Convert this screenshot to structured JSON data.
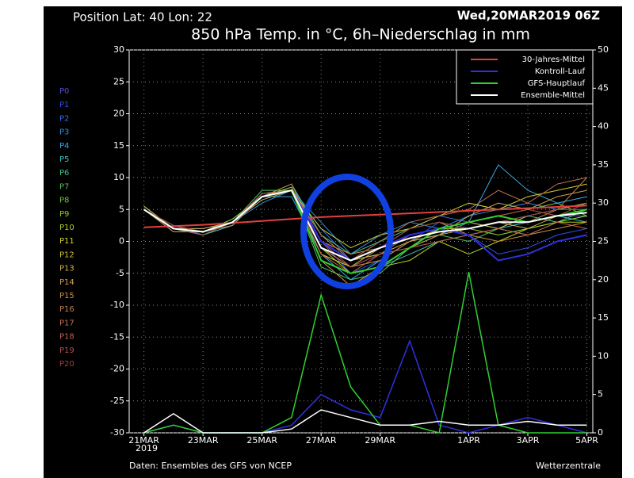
{
  "chart_data": {
    "type": "line",
    "position": "Position   Lat: 40 Lon: 22",
    "run": "Wed,20MAR2019 06Z",
    "title": "850 hPa Temp. in °C, 6h–Niederschlag in mm",
    "source": "Daten: Ensembles des GFS von NCEP",
    "brand": "Wetterzentrale",
    "x_year": "2019",
    "x": [
      21,
      22,
      23,
      24,
      25,
      26,
      27,
      28,
      29,
      30,
      31,
      32,
      33,
      34,
      35,
      36
    ],
    "xlim": [
      20.5,
      36.2
    ],
    "xticks": [
      {
        "value": 21,
        "label": "21MAR"
      },
      {
        "value": 23,
        "label": "23MAR"
      },
      {
        "value": 25,
        "label": "25MAR"
      },
      {
        "value": 27,
        "label": "27MAR"
      },
      {
        "value": 29,
        "label": "29MAR"
      },
      {
        "value": 32,
        "label": "1APR"
      },
      {
        "value": 34,
        "label": "3APR"
      },
      {
        "value": 36,
        "label": "5APR"
      }
    ],
    "ylim": [
      -30,
      30
    ],
    "yticks": [
      -30,
      -25,
      -20,
      -15,
      -10,
      -5,
      0,
      5,
      10,
      15,
      20,
      25,
      30
    ],
    "y2lim": [
      0,
      50
    ],
    "y2ticks": [
      0,
      5,
      10,
      15,
      20,
      25,
      30,
      35,
      40,
      45,
      50
    ],
    "grid": true,
    "legend": "top-right",
    "series": [
      {
        "name": "30-Jahres-Mittel",
        "color": "#e04040",
        "values": [
          2.2,
          2.4,
          2.6,
          2.9,
          3.2,
          3.5,
          3.8,
          4.0,
          4.2,
          4.4,
          4.6,
          4.8,
          5.0,
          5.2,
          5.4,
          5.6
        ]
      },
      {
        "name": "Kontroll-Lauf",
        "color": "#3030e0",
        "values": [
          5,
          2,
          1.5,
          3,
          7,
          8,
          0,
          -3,
          -1,
          1,
          2,
          1,
          -3,
          -2,
          0,
          1
        ],
        "axis_y2_precip": [
          0,
          1,
          0,
          0,
          0,
          1,
          5,
          3,
          2,
          12,
          1,
          0,
          1,
          2,
          1,
          0
        ]
      },
      {
        "name": "GFS-Hauptlauf",
        "color": "#30d030",
        "values": [
          5,
          2,
          1.5,
          3,
          7,
          8,
          -3,
          -5,
          -4,
          -1,
          2,
          3,
          4,
          3,
          4,
          5
        ],
        "axis_y2_precip": [
          0,
          1,
          0,
          0,
          0,
          2,
          18,
          6,
          1,
          1,
          0,
          21,
          1,
          0,
          0,
          0
        ]
      },
      {
        "name": "Ensemble-Mittel",
        "color": "#ffffff",
        "values": [
          5,
          2,
          1.5,
          3,
          7,
          8,
          -1,
          -3,
          -1,
          0.5,
          1.5,
          2,
          3,
          3,
          4,
          4.5
        ],
        "axis_y2_precip": [
          0,
          2.5,
          0,
          0,
          0,
          0.5,
          3,
          2,
          1,
          1,
          1.5,
          1,
          1,
          1.5,
          1,
          1
        ]
      }
    ],
    "members": [
      {
        "name": "P0",
        "color": "#5050d0",
        "values": [
          5,
          2,
          1.5,
          3,
          7,
          8,
          -1,
          -4,
          -2,
          1,
          2,
          2,
          3,
          3,
          4,
          4
        ]
      },
      {
        "name": "P1",
        "color": "#3050e0",
        "values": [
          5,
          2.5,
          1,
          3,
          7,
          9,
          0,
          -5,
          -3,
          0,
          3,
          1,
          -2,
          -1,
          1,
          2
        ]
      },
      {
        "name": "P2",
        "color": "#3070e0",
        "values": [
          5,
          2,
          1.5,
          3.5,
          7,
          8,
          2,
          -3,
          -1,
          2,
          4,
          3,
          2,
          4,
          5,
          6
        ]
      },
      {
        "name": "P3",
        "color": "#3090e0",
        "values": [
          5.5,
          2,
          2,
          3,
          6,
          8,
          3,
          -2,
          1,
          3,
          2,
          4,
          5,
          6,
          5,
          5
        ]
      },
      {
        "name": "P4",
        "color": "#40a8e0",
        "values": [
          5,
          1.5,
          1.5,
          3,
          7,
          7,
          -2,
          -6,
          -3,
          0,
          1,
          3,
          12,
          8,
          6,
          7
        ]
      },
      {
        "name": "P5",
        "color": "#40c0c0",
        "values": [
          5,
          2,
          1,
          2.5,
          7.5,
          8,
          -3,
          -5,
          -4,
          -2,
          0,
          1,
          2,
          3,
          4,
          3
        ]
      },
      {
        "name": "P6",
        "color": "#40c090",
        "values": [
          5,
          2,
          1.5,
          3,
          7,
          9,
          1,
          -2,
          0,
          2,
          3,
          2,
          3,
          4,
          3,
          5
        ]
      },
      {
        "name": "P7",
        "color": "#50c060",
        "values": [
          5,
          2,
          2,
          3,
          8,
          8,
          -4,
          -6,
          -5,
          -1,
          1,
          0,
          2,
          1,
          3,
          4
        ]
      },
      {
        "name": "P8",
        "color": "#70c040",
        "values": [
          5,
          2.5,
          1.5,
          3,
          7,
          8,
          -2,
          -4,
          -3,
          0,
          2,
          3,
          4,
          5,
          6,
          4
        ]
      },
      {
        "name": "P9",
        "color": "#90d030",
        "values": [
          5,
          2,
          1.5,
          3.5,
          7,
          8,
          0,
          -3,
          -2,
          1,
          2,
          2,
          1,
          2,
          3,
          4
        ]
      },
      {
        "name": "P10",
        "color": "#b0d020",
        "values": [
          5,
          2,
          1,
          3,
          7,
          8.5,
          -1,
          -5,
          -4,
          -3,
          0,
          -2,
          0,
          2,
          3,
          3
        ]
      },
      {
        "name": "P11",
        "color": "#d0d030",
        "values": [
          5,
          2,
          1.5,
          3,
          7,
          8,
          2,
          -1,
          1,
          2,
          4,
          6,
          5,
          7,
          8,
          9
        ]
      },
      {
        "name": "P12",
        "color": "#d0c040",
        "values": [
          5.5,
          2,
          1.5,
          3,
          7,
          8,
          -2,
          -4,
          -1,
          1,
          2,
          3,
          2,
          4,
          5,
          6
        ]
      },
      {
        "name": "P13",
        "color": "#d0b050",
        "values": [
          5,
          2,
          1.5,
          3,
          6.5,
          8,
          1,
          -3,
          -2,
          0,
          1,
          2,
          3,
          2,
          4,
          5
        ]
      },
      {
        "name": "P14",
        "color": "#d0a050",
        "values": [
          5,
          2,
          2,
          3,
          7,
          8,
          -3,
          -7,
          -4,
          -1,
          1,
          4,
          6,
          5,
          7,
          8
        ]
      },
      {
        "name": "P15",
        "color": "#d09040",
        "values": [
          5,
          1.5,
          1.5,
          3,
          7,
          8,
          0,
          -2,
          -1,
          2,
          3,
          1,
          0,
          1,
          2,
          3
        ]
      },
      {
        "name": "P16",
        "color": "#c08050",
        "values": [
          5,
          2,
          1.5,
          2.5,
          7,
          9,
          -1,
          -4,
          -3,
          0,
          2,
          3,
          4,
          3,
          5,
          10
        ]
      },
      {
        "name": "P17",
        "color": "#c07050",
        "values": [
          5,
          2,
          1.5,
          3,
          7,
          8,
          1,
          -3,
          0,
          3,
          4,
          5,
          8,
          6,
          9,
          10
        ]
      },
      {
        "name": "P18",
        "color": "#c06050",
        "values": [
          5,
          2,
          1.5,
          3,
          7.5,
          8,
          -2,
          -5,
          -2,
          -1,
          0,
          1,
          2,
          1,
          3,
          2
        ]
      },
      {
        "name": "P19",
        "color": "#b05050",
        "values": [
          5,
          2,
          1,
          3,
          7,
          8,
          0,
          -4,
          -2,
          1,
          2,
          3,
          4,
          5,
          4,
          6
        ]
      },
      {
        "name": "P20",
        "color": "#a04040",
        "values": [
          5,
          2.5,
          1.5,
          3,
          7,
          8,
          -1,
          -3,
          -1,
          2,
          3,
          2,
          3,
          4,
          5,
          5
        ]
      }
    ]
  }
}
